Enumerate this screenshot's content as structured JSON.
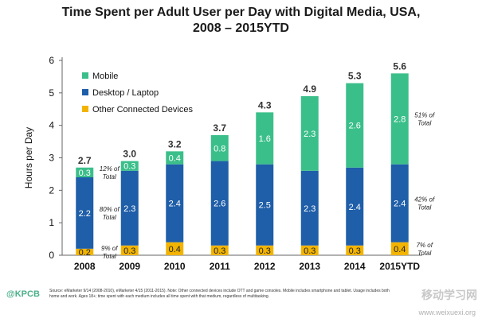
{
  "chart_data": {
    "type": "bar",
    "stacked": true,
    "title": "Time Spent per Adult User per Day with Digital Media, USA, 2008 – 2015YTD",
    "title_lines": [
      "Time Spent per Adult User per Day with Digital Media, USA,",
      "2008 – 2015YTD"
    ],
    "ylabel": "Hours per Day",
    "xlabel": "",
    "ylim": [
      0,
      6
    ],
    "yticks": [
      0,
      1,
      2,
      3,
      4,
      5,
      6
    ],
    "grid": false,
    "legend_position": "top-left",
    "categories": [
      "2008",
      "2009",
      "2010",
      "2011",
      "2012",
      "2013",
      "2014",
      "2015YTD"
    ],
    "series": [
      {
        "name": "Other Connected Devices",
        "color": "#f2b400",
        "values": [
          0.2,
          0.3,
          0.4,
          0.3,
          0.3,
          0.3,
          0.3,
          0.4
        ]
      },
      {
        "name": "Desktop / Laptop",
        "color": "#1f5ea8",
        "values": [
          2.2,
          2.3,
          2.4,
          2.6,
          2.5,
          2.3,
          2.4,
          2.4
        ]
      },
      {
        "name": "Mobile",
        "color": "#3bbf8a",
        "values": [
          0.3,
          0.3,
          0.4,
          0.8,
          1.6,
          2.3,
          2.6,
          2.8
        ]
      }
    ],
    "totals": [
      "2.7",
      "3.0",
      "3.2",
      "3.7",
      "4.3",
      "4.9",
      "5.3",
      "5.6"
    ],
    "legend_order": [
      "Mobile",
      "Desktop / Laptop",
      "Other Connected Devices"
    ],
    "annotations": [
      {
        "bar": 0,
        "series": 2,
        "text": [
          "12% of",
          "Total"
        ]
      },
      {
        "bar": 0,
        "series": 1,
        "text": [
          "80% of",
          "Total"
        ]
      },
      {
        "bar": 0,
        "series": 0,
        "text": [
          "9% of",
          "Total"
        ]
      },
      {
        "bar": 7,
        "series": 2,
        "text": [
          "51% of",
          "Total"
        ]
      },
      {
        "bar": 7,
        "series": 1,
        "text": [
          "42% of",
          "Total"
        ]
      },
      {
        "bar": 7,
        "series": 0,
        "text": [
          "7% of",
          "Total"
        ]
      }
    ]
  },
  "footer": {
    "logo": "@KPCB",
    "note": "Source: eMarketer 9/14 (2008-2010), eMarketer 4/15 (2011-2015). Note: Other connected devices include OTT and game consoles. Mobile includes smartphone and tablet. Usage includes both home and work. Ages 18+; time spent with each medium includes all time spent with that medium, regardless of multitasking.",
    "watermark": "移动学习网",
    "watermark_url": "www.weixuexi.org"
  }
}
